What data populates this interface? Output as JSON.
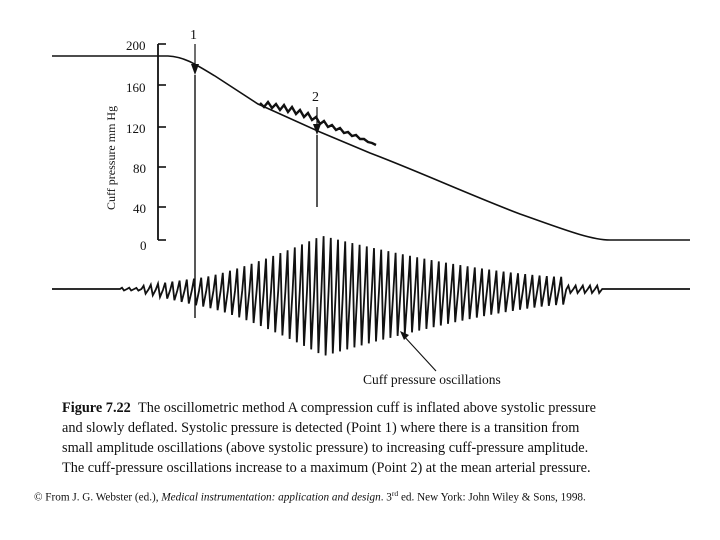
{
  "figure": {
    "y_axis": {
      "title": "Cuff pressure mm Hg",
      "ticks": [
        "200",
        "160",
        "120",
        "80",
        "40",
        "0"
      ],
      "tick_values": [
        200,
        160,
        120,
        80,
        40,
        0
      ]
    },
    "point_labels": {
      "systolic": "1",
      "mean_arterial": "2"
    },
    "oscillation_label": "Cuff pressure oscillations"
  },
  "caption": {
    "number": "Figure 7.22",
    "lines": [
      "The oscillometric method A compression cuff is inflated above systolic pressure",
      "and slowly deflated. Systolic pressure is detected (Point 1) where there is a transition from",
      "small amplitude oscillations (above systolic pressure) to increasing cuff-pressure amplitude.",
      "The cuff-pressure oscillations increase to a maximum (Point 2) at the mean arterial pressure."
    ]
  },
  "credit": {
    "prefix": "© From J. G. Webster (ed.), ",
    "title": "Medical instrumentation: application and design",
    "edition_number": ". 3",
    "edition_suffix": "rd",
    "rest": " ed. New York: John Wiley & Sons, 1998."
  }
}
